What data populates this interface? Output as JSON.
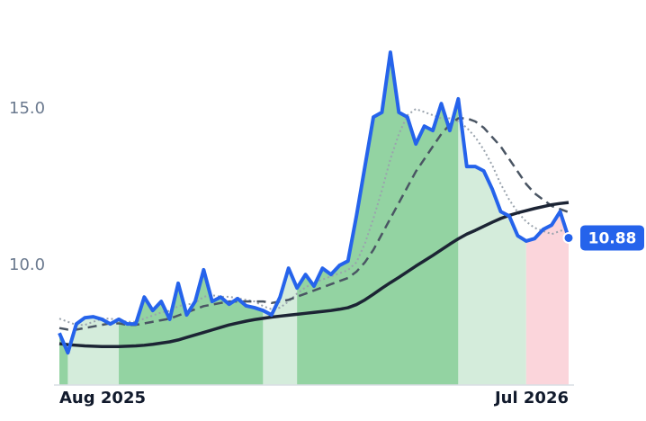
{
  "chart_data": {
    "type": "line",
    "categories": [
      "Aug 2025",
      null,
      null,
      null,
      null,
      null,
      null,
      null,
      null,
      null,
      null,
      null,
      null,
      null,
      null,
      null,
      null,
      null,
      null,
      null,
      null,
      null,
      null,
      null,
      null,
      null,
      null,
      null,
      null,
      null,
      null,
      null,
      null,
      null,
      null,
      null,
      null,
      null,
      null,
      null,
      null,
      null,
      null,
      null,
      null,
      null,
      null,
      null,
      null,
      null,
      null,
      null,
      null,
      null,
      null,
      null,
      null,
      null,
      null,
      null,
      "Jul 2026"
    ],
    "ylim": [
      6.18,
      18.48
    ],
    "yticks": [
      {
        "value": 10,
        "label": "10.0"
      },
      {
        "value": 15,
        "label": "15.0"
      }
    ],
    "regions": [
      {
        "from": 0,
        "to": 1,
        "color": "#93d3a2"
      },
      {
        "from": 1,
        "to": 7,
        "color": "#d4ecdb"
      },
      {
        "from": 7,
        "to": 24,
        "color": "#93d3a2"
      },
      {
        "from": 24,
        "to": 28,
        "color": "#d4ecdb"
      },
      {
        "from": 28,
        "to": 47,
        "color": "#93d3a2"
      },
      {
        "from": 47,
        "to": 55,
        "color": "#d4ecdb"
      },
      {
        "from": 55,
        "to": 60,
        "color": "#fbd5db"
      }
    ],
    "series": [
      {
        "color": "#9aa3ad",
        "style": "dotted",
        "width": 2,
        "values": [
          8.3,
          8.2,
          8.1,
          8.1,
          8.2,
          8.3,
          8.3,
          8.25,
          8.2,
          8.2,
          8.3,
          8.4,
          8.5,
          8.55,
          8.7,
          8.75,
          8.8,
          9.0,
          9.05,
          9.0,
          9.0,
          8.95,
          8.9,
          8.85,
          8.7,
          8.6,
          8.65,
          8.85,
          9.1,
          9.3,
          9.45,
          9.55,
          9.65,
          9.75,
          9.85,
          10.1,
          10.7,
          11.5,
          12.4,
          13.4,
          14.2,
          14.8,
          15.0,
          14.9,
          14.8,
          14.7,
          14.7,
          14.6,
          14.4,
          14.1,
          13.7,
          13.2,
          12.6,
          12.1,
          11.7,
          11.4,
          11.2,
          11.1,
          11.0,
          11.1,
          11.2
        ]
      },
      {
        "color": "#4a5563",
        "style": "dashed",
        "width": 2.5,
        "values": [
          8.0,
          7.95,
          7.95,
          8.0,
          8.05,
          8.1,
          8.15,
          8.15,
          8.1,
          8.1,
          8.15,
          8.2,
          8.25,
          8.3,
          8.4,
          8.5,
          8.6,
          8.7,
          8.75,
          8.8,
          8.85,
          8.85,
          8.85,
          8.85,
          8.85,
          8.8,
          8.85,
          8.9,
          9.0,
          9.1,
          9.2,
          9.3,
          9.4,
          9.5,
          9.6,
          9.8,
          10.1,
          10.5,
          11.0,
          11.5,
          12.0,
          12.5,
          13.0,
          13.4,
          13.8,
          14.2,
          14.5,
          14.7,
          14.7,
          14.6,
          14.4,
          14.1,
          13.8,
          13.4,
          13.0,
          12.6,
          12.3,
          12.1,
          11.9,
          11.8,
          11.7
        ]
      },
      {
        "color": "#1c2434",
        "style": "solid",
        "width": 3.5,
        "values": [
          7.5,
          7.47,
          7.45,
          7.43,
          7.42,
          7.41,
          7.41,
          7.41,
          7.42,
          7.43,
          7.45,
          7.48,
          7.52,
          7.56,
          7.62,
          7.7,
          7.78,
          7.86,
          7.94,
          8.02,
          8.1,
          8.16,
          8.22,
          8.27,
          8.31,
          8.35,
          8.38,
          8.41,
          8.44,
          8.47,
          8.5,
          8.53,
          8.56,
          8.6,
          8.65,
          8.75,
          8.9,
          9.08,
          9.27,
          9.45,
          9.62,
          9.8,
          9.98,
          10.15,
          10.32,
          10.5,
          10.68,
          10.85,
          11.0,
          11.12,
          11.25,
          11.38,
          11.5,
          11.6,
          11.68,
          11.75,
          11.82,
          11.88,
          11.94,
          11.98,
          12.01
        ]
      },
      {
        "color": "#2563eb",
        "style": "solid",
        "width": 4,
        "main": true,
        "values": [
          7.84,
          7.21,
          8.13,
          8.33,
          8.36,
          8.28,
          8.13,
          8.28,
          8.13,
          8.13,
          8.99,
          8.56,
          8.85,
          8.28,
          9.43,
          8.42,
          8.85,
          9.86,
          8.85,
          8.99,
          8.76,
          8.94,
          8.71,
          8.65,
          8.56,
          8.42,
          8.99,
          9.91,
          9.28,
          9.71,
          9.34,
          9.91,
          9.71,
          10.0,
          10.14,
          11.58,
          13.16,
          14.74,
          14.89,
          16.81,
          14.89,
          14.74,
          13.88,
          14.45,
          14.31,
          15.17,
          14.31,
          15.32,
          13.16,
          13.16,
          13.02,
          12.44,
          11.72,
          11.58,
          10.95,
          10.78,
          10.86,
          11.15,
          11.29,
          11.72,
          10.88
        ],
        "value_labels": [
          null,
          null,
          null,
          null,
          null,
          null,
          null,
          null,
          null,
          null,
          null,
          null,
          null,
          null,
          null,
          null,
          null,
          null,
          null,
          null,
          null,
          null,
          null,
          null,
          null,
          null,
          null,
          null,
          null,
          null,
          null,
          null,
          null,
          null,
          null,
          null,
          null,
          null,
          null,
          null,
          null,
          null,
          null,
          null,
          null,
          null,
          null,
          null,
          null,
          null,
          null,
          null,
          null,
          null,
          null,
          null,
          null,
          null,
          null,
          null,
          "10.88"
        ]
      }
    ]
  }
}
